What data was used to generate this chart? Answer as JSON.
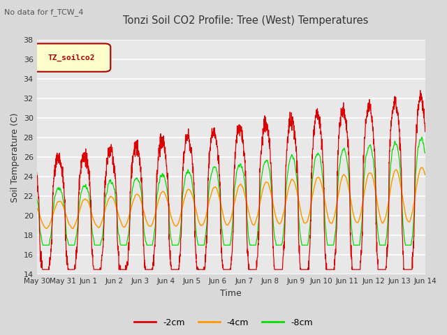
{
  "title": "Tonzi Soil CO2 Profile: Tree (West) Temperatures",
  "subtitle": "No data for f_TCW_4",
  "xlabel": "Time",
  "ylabel": "Soil Temperature (C)",
  "ylim": [
    14,
    38
  ],
  "yticks": [
    14,
    16,
    18,
    20,
    22,
    24,
    26,
    28,
    30,
    32,
    34,
    36,
    38
  ],
  "xtick_labels": [
    "May 30",
    "May 31",
    "Jun 1",
    "Jun 2",
    "Jun 3",
    "Jun 4",
    "Jun 5",
    "Jun 6",
    "Jun 7",
    "Jun 8",
    "Jun 9",
    "Jun 10",
    "Jun 11",
    "Jun 12",
    "Jun 13",
    "Jun 14"
  ],
  "legend_label_box": "TZ_soilco2",
  "legend_box_facecolor": "#ffffcc",
  "legend_box_edgecolor": "#aa0000",
  "color_2cm": "#dd0000",
  "color_4cm": "#ff9900",
  "color_8cm": "#00dd00",
  "bg_color": "#d9d9d9",
  "plot_bg_color": "#e8e8e8",
  "grid_color": "#ffffff",
  "title_color": "#333333",
  "subtitle_color": "#555555",
  "tick_color": "#333333",
  "figsize": [
    6.4,
    4.8
  ],
  "dpi": 100
}
